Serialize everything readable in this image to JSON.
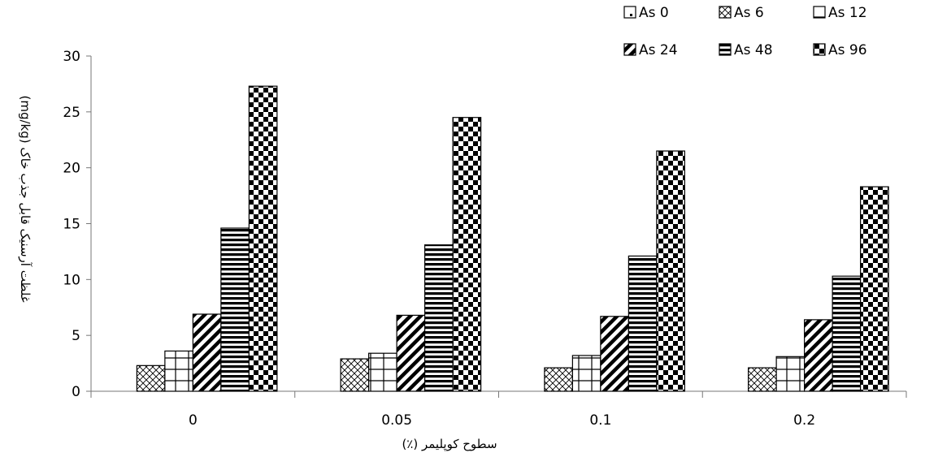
{
  "chart_data": {
    "type": "bar",
    "categories": [
      "0",
      "0.05",
      "0.1",
      "0.2"
    ],
    "series": [
      {
        "name": "As 0",
        "pattern": "solid-white",
        "values": [
          0,
          0,
          0,
          0
        ]
      },
      {
        "name": "As 6",
        "pattern": "crosshatch",
        "values": [
          2.3,
          2.9,
          2.1,
          2.1
        ]
      },
      {
        "name": "As 12",
        "pattern": "grid",
        "values": [
          3.6,
          3.4,
          3.2,
          3.1
        ]
      },
      {
        "name": "As 24",
        "pattern": "diagonal",
        "values": [
          6.9,
          6.8,
          6.7,
          6.4
        ]
      },
      {
        "name": "As 48",
        "pattern": "horizontal",
        "values": [
          14.6,
          13.1,
          12.1,
          10.3
        ]
      },
      {
        "name": "As 96",
        "pattern": "checker",
        "values": [
          27.3,
          24.5,
          21.5,
          18.3
        ]
      }
    ],
    "xlabel": "سطوح کوپلیمر (٪)",
    "ylabel": "غلظت آرسنیک قابل جذب خاک (mg/kg)",
    "ylim": [
      0,
      30
    ],
    "yticks": [
      0,
      5,
      10,
      15,
      20,
      25,
      30
    ],
    "grid": false,
    "legend_position": "top-right",
    "colors": {
      "stroke": "#000000",
      "fill": "#ffffff"
    }
  }
}
